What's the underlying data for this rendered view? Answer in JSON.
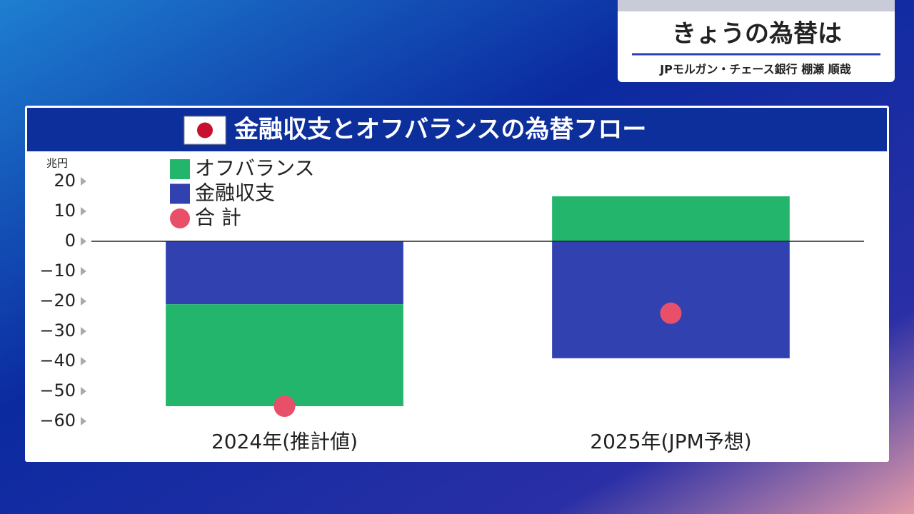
{
  "header": {
    "title": "きょうの為替は",
    "subtitle": "JPモルガン・チェース銀行 棚瀬 順哉"
  },
  "chart_data": {
    "type": "bar",
    "stacked": true,
    "title": "金融収支とオフバランスの為替フロー",
    "y_label": "兆円",
    "categories": [
      "2024年(推計値)",
      "2025年(JPM予想)"
    ],
    "series": [
      {
        "name": "オフバランス",
        "color": "#22b56b",
        "values": [
          -34,
          15
        ]
      },
      {
        "name": "金融収支",
        "color": "#3141b0",
        "values": [
          -21,
          -39
        ]
      },
      {
        "name": "合 計",
        "color": "#e8506a",
        "values": [
          -55,
          -24
        ],
        "type": "dot"
      }
    ],
    "ylim": [
      -60,
      20
    ],
    "yticks": [
      20,
      10,
      0,
      {
        "value": -10,
        "label": "−10"
      },
      {
        "value": -20,
        "label": "−20"
      },
      {
        "value": -30,
        "label": "−30"
      },
      {
        "value": -40,
        "label": "−40"
      },
      {
        "value": -50,
        "label": "−50"
      },
      {
        "value": -60,
        "label": "−60"
      }
    ]
  }
}
